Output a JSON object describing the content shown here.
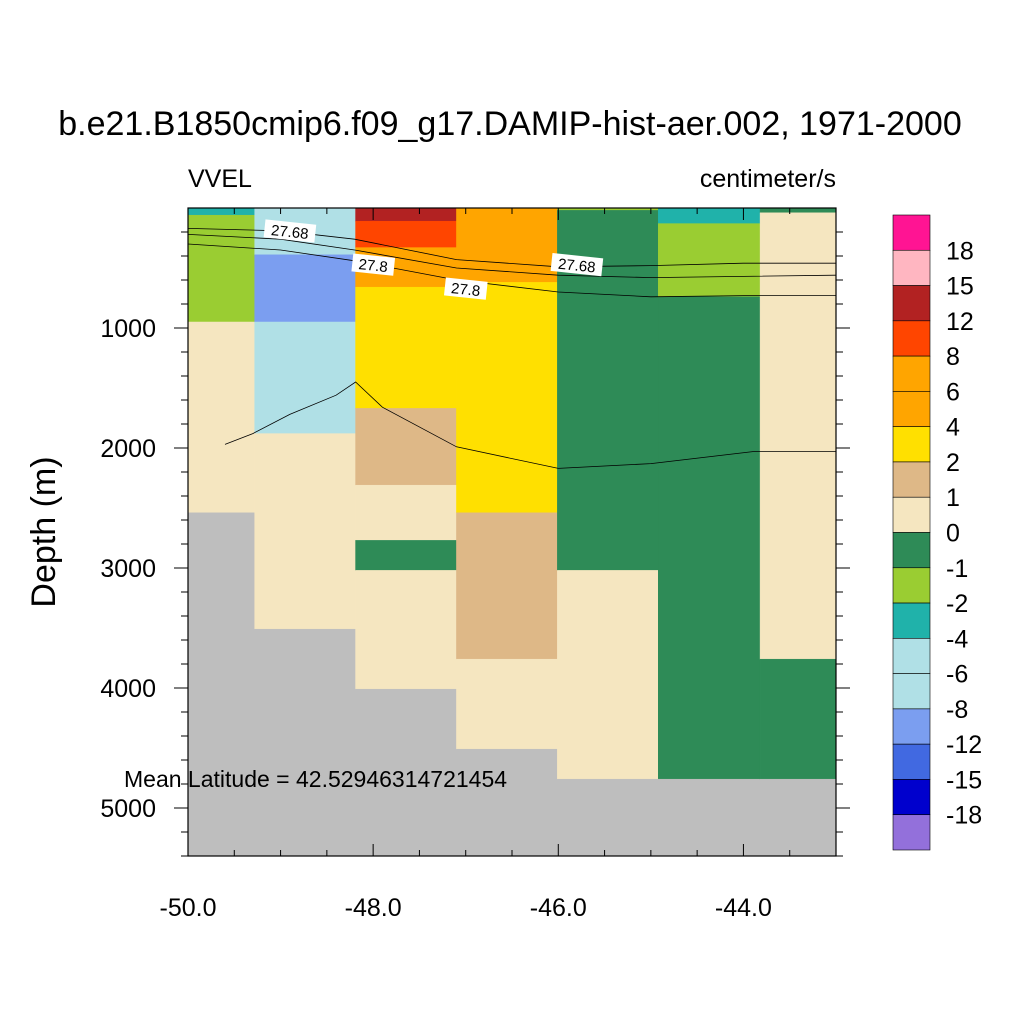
{
  "chart_data": {
    "type": "heatmap",
    "title": "b.e21.B1850cmip6.f09_g17.DAMIP-hist-aer.002, 1971-2000",
    "left_label": "VVEL",
    "right_label": "centimeter/s",
    "ylabel": "Depth (m)",
    "xlabel": "",
    "annotation": "Mean Latitude = 42.52946314721454",
    "xlim": [
      -50.0,
      -43.0
    ],
    "ylim": [
      0,
      5400
    ],
    "y_inverted": true,
    "x_ticks": [
      -50.0,
      -48.0,
      -46.0,
      -44.0
    ],
    "x_tick_labels": [
      "-50.0",
      "-48.0",
      "-46.0",
      "-44.0"
    ],
    "y_ticks": [
      1000,
      2000,
      3000,
      4000,
      5000
    ],
    "y_tick_labels": [
      "1000",
      "2000",
      "3000",
      "4000",
      "5000"
    ],
    "colorbar": {
      "labels": [
        "18",
        "15",
        "12",
        "8",
        "6",
        "4",
        "2",
        "1",
        "0",
        "-1",
        "-2",
        "-4",
        "-6",
        "-8",
        "-12",
        "-15",
        "-18"
      ],
      "colors": [
        "#FF1493",
        "#FFB6C1",
        "#B22222",
        "#FF4500",
        "#FFA500",
        "#FFA500",
        "#FFE000",
        "#DEB887",
        "#F5E6C0",
        "#2E8B57",
        "#9ACD32",
        "#20B2AA",
        "#B0E0E6",
        "#B0E0E6",
        "#7B9EF0",
        "#4169E1",
        "#0000CD",
        "#9370DB"
      ]
    },
    "land_color": "#BEBEBE",
    "cells": [
      {
        "x0": -50.0,
        "x1": -49.28,
        "y0": 0,
        "y1": 60,
        "color": "#20B2AA"
      },
      {
        "x0": -50.0,
        "x1": -49.28,
        "y0": 60,
        "y1": 950,
        "color": "#9ACD32"
      },
      {
        "x0": -50.0,
        "x1": -49.28,
        "y0": 950,
        "y1": 2540,
        "color": "#F5E6C0"
      },
      {
        "x0": -50.0,
        "x1": -49.28,
        "y0": 2540,
        "y1": 5400,
        "color": "#BEBEBE"
      },
      {
        "x0": -49.28,
        "x1": -48.19,
        "y0": 0,
        "y1": 390,
        "color": "#B0E0E6"
      },
      {
        "x0": -49.28,
        "x1": -48.19,
        "y0": 390,
        "y1": 950,
        "color": "#7B9EF0"
      },
      {
        "x0": -49.28,
        "x1": -48.19,
        "y0": 950,
        "y1": 1880,
        "color": "#B0E0E6"
      },
      {
        "x0": -49.28,
        "x1": -48.19,
        "y0": 1880,
        "y1": 3510,
        "color": "#F5E6C0"
      },
      {
        "x0": -49.28,
        "x1": -48.19,
        "y0": 3510,
        "y1": 5400,
        "color": "#BEBEBE"
      },
      {
        "x0": -48.19,
        "x1": -47.1,
        "y0": 0,
        "y1": 110,
        "color": "#B22222"
      },
      {
        "x0": -48.19,
        "x1": -47.1,
        "y0": 110,
        "y1": 330,
        "color": "#FF4500"
      },
      {
        "x0": -48.19,
        "x1": -47.1,
        "y0": 330,
        "y1": 660,
        "color": "#FFA500"
      },
      {
        "x0": -48.19,
        "x1": -47.1,
        "y0": 660,
        "y1": 1670,
        "color": "#FFE000"
      },
      {
        "x0": -48.19,
        "x1": -47.1,
        "y0": 1670,
        "y1": 2310,
        "color": "#DEB887"
      },
      {
        "x0": -48.19,
        "x1": -47.1,
        "y0": 2310,
        "y1": 2770,
        "color": "#F5E6C0"
      },
      {
        "x0": -48.19,
        "x1": -47.1,
        "y0": 2770,
        "y1": 3020,
        "color": "#2E8B57"
      },
      {
        "x0": -48.19,
        "x1": -47.1,
        "y0": 3020,
        "y1": 4010,
        "color": "#F5E6C0"
      },
      {
        "x0": -48.19,
        "x1": -47.1,
        "y0": 4010,
        "y1": 5400,
        "color": "#BEBEBE"
      },
      {
        "x0": -47.1,
        "x1": -46.01,
        "y0": 0,
        "y1": 620,
        "color": "#FFA500"
      },
      {
        "x0": -47.1,
        "x1": -46.01,
        "y0": 620,
        "y1": 2540,
        "color": "#FFE000"
      },
      {
        "x0": -47.1,
        "x1": -46.01,
        "y0": 2540,
        "y1": 3760,
        "color": "#DEB887"
      },
      {
        "x0": -47.1,
        "x1": -46.01,
        "y0": 3760,
        "y1": 4510,
        "color": "#F5E6C0"
      },
      {
        "x0": -47.1,
        "x1": -46.01,
        "y0": 4510,
        "y1": 5400,
        "color": "#BEBEBE"
      },
      {
        "x0": -46.01,
        "x1": -44.92,
        "y0": 0,
        "y1": 20,
        "color": "#9ACD32"
      },
      {
        "x0": -46.01,
        "x1": -44.92,
        "y0": 20,
        "y1": 3020,
        "color": "#2E8B57"
      },
      {
        "x0": -46.01,
        "x1": -44.92,
        "y0": 3020,
        "y1": 4760,
        "color": "#F5E6C0"
      },
      {
        "x0": -46.01,
        "x1": -44.92,
        "y0": 4760,
        "y1": 5400,
        "color": "#BEBEBE"
      },
      {
        "x0": -44.92,
        "x1": -43.82,
        "y0": 0,
        "y1": 130,
        "color": "#20B2AA"
      },
      {
        "x0": -44.92,
        "x1": -43.82,
        "y0": 130,
        "y1": 740,
        "color": "#9ACD32"
      },
      {
        "x0": -44.92,
        "x1": -43.82,
        "y0": 740,
        "y1": 4760,
        "color": "#2E8B57"
      },
      {
        "x0": -44.92,
        "x1": -43.82,
        "y0": 4760,
        "y1": 5400,
        "color": "#BEBEBE"
      },
      {
        "x0": -43.82,
        "x1": -43.0,
        "y0": 0,
        "y1": 40,
        "color": "#2E8B57"
      },
      {
        "x0": -43.82,
        "x1": -43.0,
        "y0": 40,
        "y1": 3760,
        "color": "#F5E6C0"
      },
      {
        "x0": -43.82,
        "x1": -43.0,
        "y0": 3760,
        "y1": 4760,
        "color": "#2E8B57"
      },
      {
        "x0": -43.82,
        "x1": -43.0,
        "y0": 4760,
        "y1": 5400,
        "color": "#BEBEBE"
      }
    ],
    "contours": [
      {
        "label": "27.68",
        "points": [
          [
            -50.0,
            170
          ],
          [
            -49.0,
            190
          ],
          [
            -48.2,
            260
          ],
          [
            -47.1,
            430
          ],
          [
            -46.0,
            490
          ],
          [
            -45.0,
            480
          ],
          [
            -44.0,
            460
          ],
          [
            -43.0,
            460
          ]
        ],
        "label_at": [
          [
            -48.9,
            200
          ],
          [
            -45.8,
            480
          ]
        ]
      },
      {
        "label": "27.8",
        "points": [
          [
            -50.0,
            220
          ],
          [
            -49.0,
            260
          ],
          [
            -48.2,
            350
          ],
          [
            -47.1,
            500
          ],
          [
            -46.0,
            560
          ],
          [
            -45.0,
            580
          ],
          [
            -44.0,
            570
          ],
          [
            -43.0,
            560
          ]
        ],
        "label_at": [
          [
            -48.0,
            480
          ],
          [
            -47.0,
            680
          ]
        ]
      },
      {
        "label": "",
        "points": [
          [
            -50.0,
            300
          ],
          [
            -49.0,
            350
          ],
          [
            -48.2,
            440
          ],
          [
            -47.1,
            600
          ],
          [
            -46.0,
            700
          ],
          [
            -45.0,
            740
          ],
          [
            -44.0,
            730
          ],
          [
            -43.0,
            730
          ]
        ],
        "label_at": []
      },
      {
        "label": "",
        "points": [
          [
            -49.6,
            1970
          ],
          [
            -49.3,
            1880
          ],
          [
            -48.9,
            1720
          ],
          [
            -48.4,
            1560
          ],
          [
            -48.19,
            1450
          ],
          [
            -47.9,
            1660
          ],
          [
            -47.1,
            1990
          ],
          [
            -46.0,
            2170
          ],
          [
            -45.0,
            2130
          ],
          [
            -43.9,
            2030
          ],
          [
            -43.0,
            2030
          ]
        ],
        "label_at": []
      }
    ]
  }
}
